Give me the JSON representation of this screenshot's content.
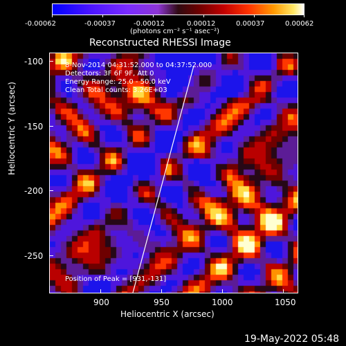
{
  "colorbar": {
    "ticks": [
      "-0.00062",
      "-0.00037",
      "-0.00012",
      "0.00012",
      "0.00037",
      "0.00062"
    ],
    "unit_label": "(photons cm⁻² s⁻¹ asec⁻²)"
  },
  "plot": {
    "title": "Reconstructed RHESSI Image",
    "xlabel": "Heliocentric X (arcsec)",
    "ylabel": "Heliocentric Y (arcsec)",
    "x_ticks": [
      "900",
      "950",
      "1000",
      "1050"
    ],
    "y_ticks": [
      "-100",
      "-150",
      "-200",
      "-250"
    ]
  },
  "annotations": {
    "time_range": "8-Nov-2014 04:31:52.000 to 04:37:52.000",
    "detectors": "Detectors: 3F 6F 9F, Att 0",
    "energy_range": "Energy Range: 25.0 - 50.0 keV",
    "clean_counts": "Clean     Total counts: 3.26E+03",
    "peak": "Position of Peak = [931,-131]"
  },
  "footer": {
    "timestamp": "19-May-2022 05:48"
  }
}
